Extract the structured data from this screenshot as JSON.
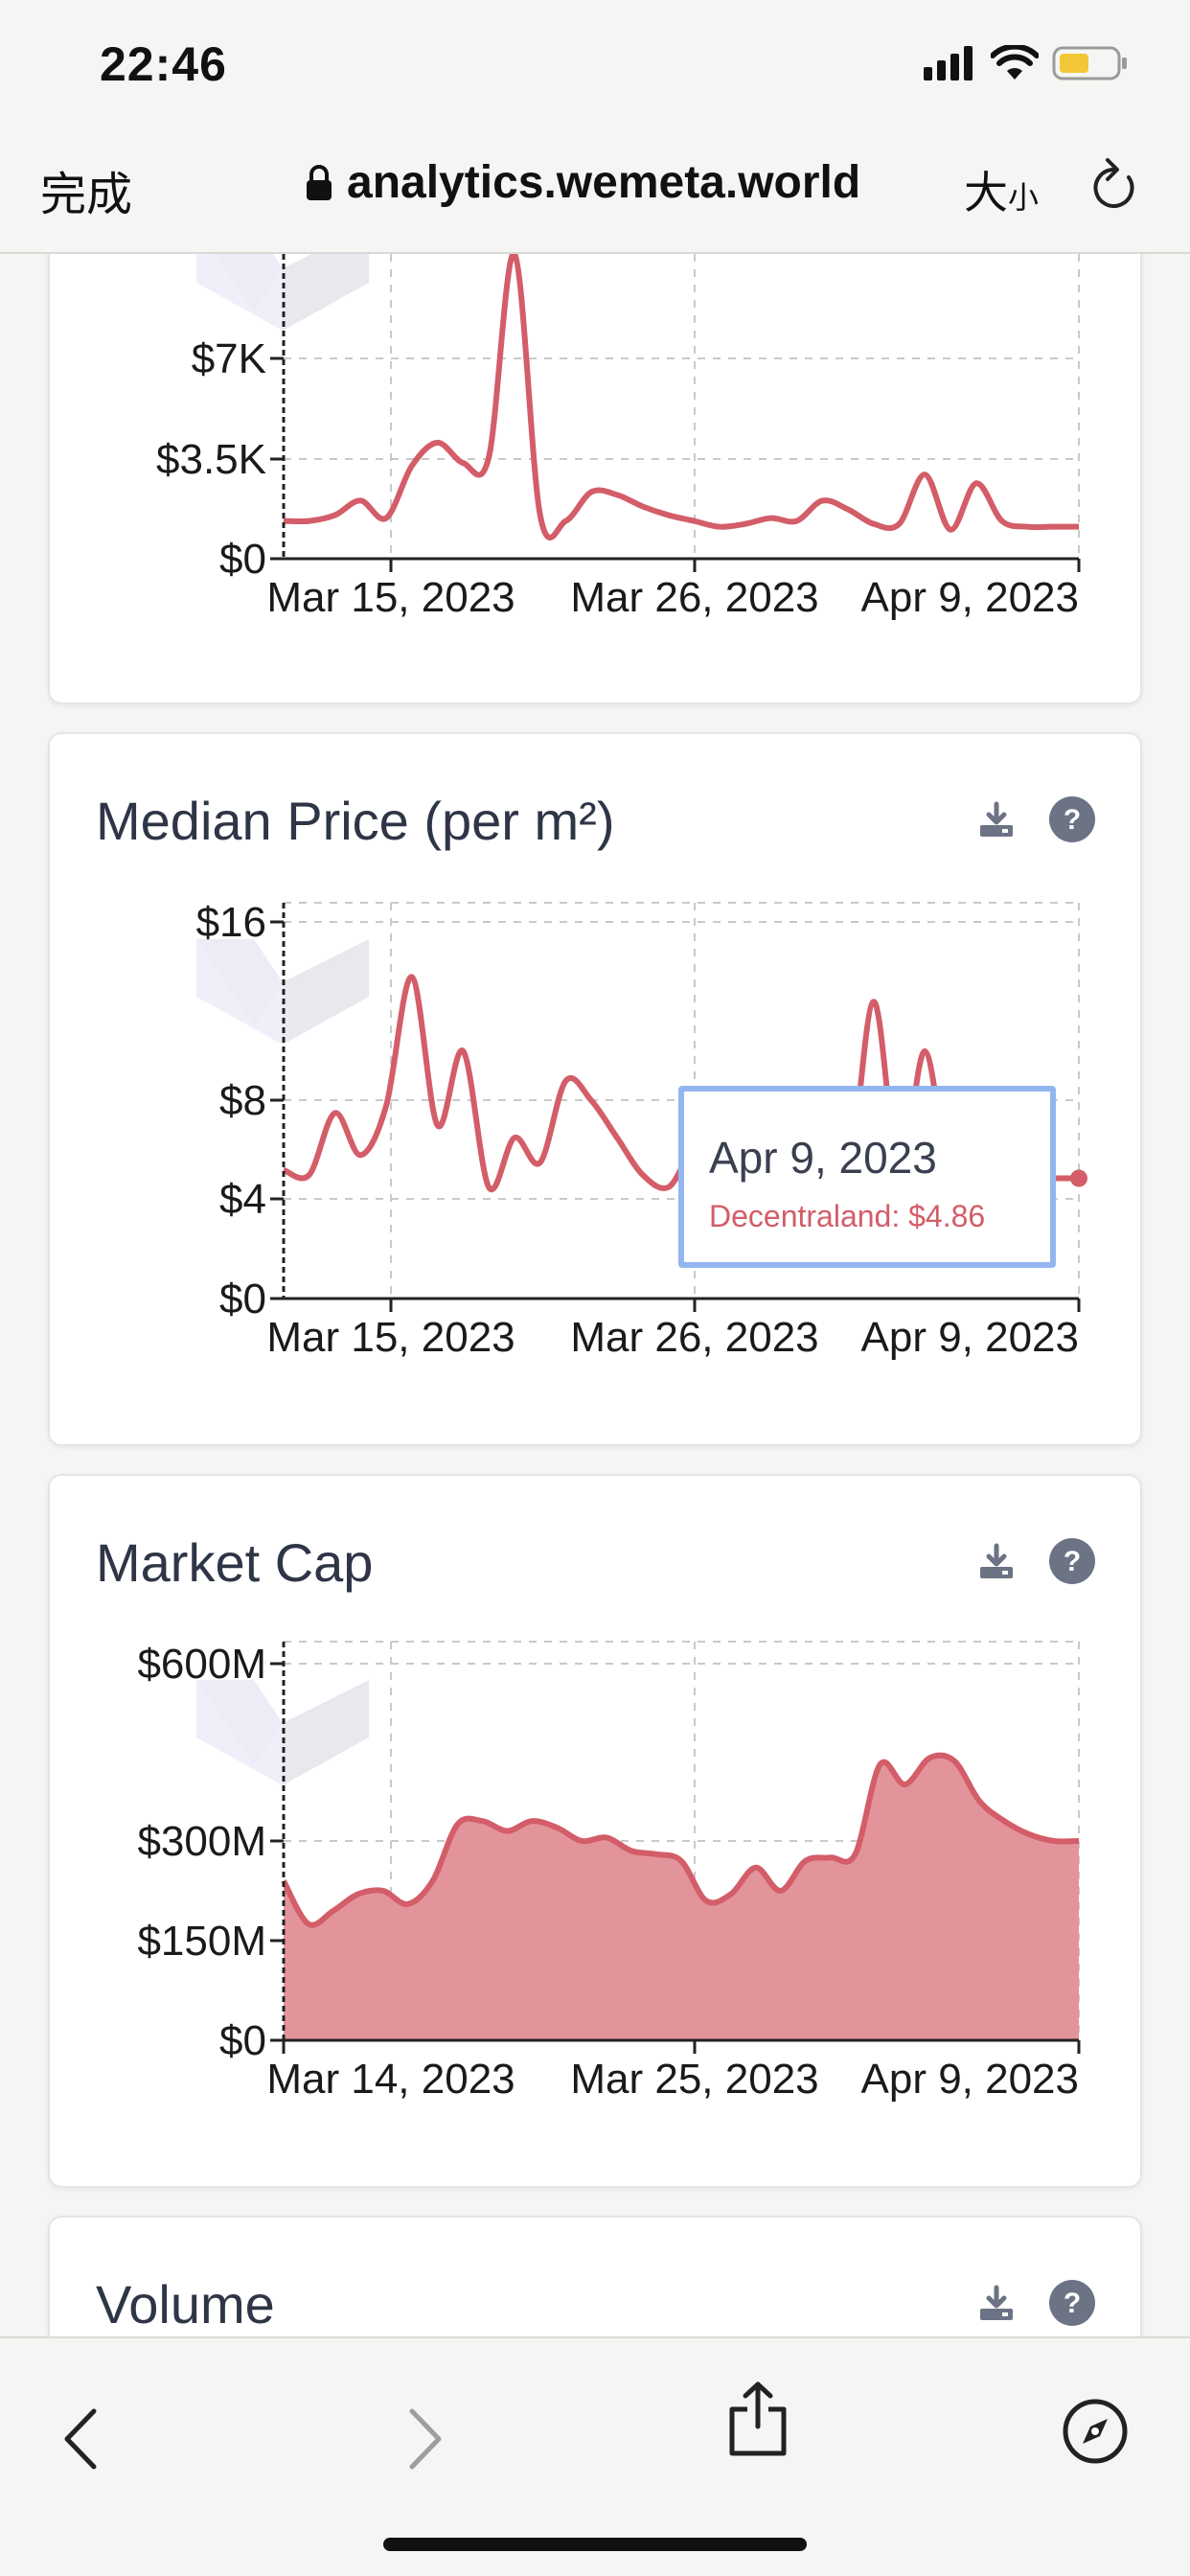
{
  "status_bar": {
    "time": "22:46"
  },
  "browser": {
    "done_label": "完成",
    "url": "analytics.wemeta.world",
    "text_size_big": "大",
    "text_size_small": "小"
  },
  "cards": {
    "top": {
      "y_ticks": [
        "$7K",
        "$3.5K",
        "$0"
      ],
      "x_ticks": [
        "Mar 15, 2023",
        "Mar 26, 2023",
        "Apr 9, 2023"
      ]
    },
    "median": {
      "title": "Median Price (per m²)",
      "y_ticks": [
        "$16",
        "$8",
        "$4",
        "$0"
      ],
      "x_ticks": [
        "Mar 15, 2023",
        "Mar 26, 2023",
        "Apr 9, 2023"
      ],
      "tooltip": {
        "date": "Apr 9, 2023",
        "value": "Decentraland: $4.86"
      }
    },
    "market_cap": {
      "title": "Market Cap",
      "y_ticks": [
        "$600M",
        "$300M",
        "$150M",
        "$0"
      ],
      "x_ticks": [
        "Mar 14, 2023",
        "Mar 25, 2023",
        "Apr 9, 2023"
      ]
    },
    "volume": {
      "title": "Volume"
    }
  },
  "colors": {
    "series": "#d35d68",
    "area_fill": "#e3949a",
    "tooltip_border": "#93b6f0",
    "icon_gray": "#6c7385"
  },
  "chart_data": [
    {
      "type": "line",
      "title": "",
      "x": [
        "Mar 9, 2023",
        "Mar 10, 2023",
        "Mar 11, 2023",
        "Mar 12, 2023",
        "Mar 13, 2023",
        "Mar 14, 2023",
        "Mar 15, 2023",
        "Mar 16, 2023",
        "Mar 17, 2023",
        "Mar 18, 2023",
        "Mar 19, 2023",
        "Mar 20, 2023",
        "Mar 21, 2023",
        "Mar 22, 2023",
        "Mar 23, 2023",
        "Mar 24, 2023",
        "Mar 25, 2023",
        "Mar 26, 2023",
        "Mar 27, 2023",
        "Mar 28, 2023",
        "Mar 29, 2023",
        "Mar 30, 2023",
        "Mar 31, 2023",
        "Apr 1, 2023",
        "Apr 2, 2023",
        "Apr 3, 2023",
        "Apr 4, 2023",
        "Apr 5, 2023",
        "Apr 6, 2023",
        "Apr 7, 2023",
        "Apr 8, 2023",
        "Apr 9, 2023"
      ],
      "series": [
        {
          "values": [
            1300,
            1300,
            1500,
            2000,
            1400,
            3200,
            4000,
            3300,
            3500,
            13000,
            1500,
            1300,
            2300,
            2200,
            1800,
            1500,
            1300,
            1100,
            1200,
            1400,
            1300,
            2000,
            1700,
            1200,
            1200,
            2900,
            1000,
            2600,
            1300,
            1100,
            1100,
            1100
          ]
        }
      ],
      "x_ticks": [
        "Mar 15, 2023",
        "Mar 26, 2023",
        "Apr 9, 2023"
      ],
      "y_ticks": [
        "$7K",
        "$3.5K",
        "$0"
      ],
      "ylim": [
        0,
        10500
      ]
    },
    {
      "type": "line",
      "title": "Median Price (per m²)",
      "x": [
        "Mar 9, 2023",
        "Mar 10, 2023",
        "Mar 11, 2023",
        "Mar 12, 2023",
        "Mar 13, 2023",
        "Mar 14, 2023",
        "Mar 15, 2023",
        "Mar 16, 2023",
        "Mar 17, 2023",
        "Mar 18, 2023",
        "Mar 19, 2023",
        "Mar 20, 2023",
        "Mar 21, 2023",
        "Mar 22, 2023",
        "Mar 23, 2023",
        "Mar 24, 2023",
        "Mar 25, 2023",
        "Mar 26, 2023",
        "Mar 27, 2023",
        "Mar 28, 2023",
        "Mar 29, 2023",
        "Mar 30, 2023",
        "Mar 31, 2023",
        "Apr 1, 2023",
        "Apr 2, 2023",
        "Apr 3, 2023",
        "Apr 4, 2023",
        "Apr 5, 2023",
        "Apr 6, 2023",
        "Apr 7, 2023",
        "Apr 8, 2023",
        "Apr 9, 2023"
      ],
      "series": [
        {
          "name": "Decentraland",
          "values": [
            5.2,
            5.0,
            7.5,
            5.8,
            7.8,
            13.0,
            7.0,
            10.0,
            4.5,
            6.5,
            5.5,
            8.8,
            8.0,
            6.5,
            5.0,
            4.5,
            6.0,
            5.5,
            5.0,
            6.0,
            4.8,
            5.5,
            4.6,
            12.0,
            5.0,
            10.0,
            4.5,
            4.6,
            4.7,
            4.8,
            4.86,
            4.86
          ]
        }
      ],
      "x_ticks": [
        "Mar 15, 2023",
        "Mar 26, 2023",
        "Apr 9, 2023"
      ],
      "y_ticks": [
        "$16",
        "$8",
        "$4",
        "$0"
      ],
      "ylim": [
        0,
        16
      ],
      "tooltip": {
        "date": "Apr 9, 2023",
        "series": "Decentraland",
        "value": 4.86
      }
    },
    {
      "type": "area",
      "title": "Market Cap",
      "x": [
        "Mar 8, 2023",
        "Mar 9, 2023",
        "Mar 10, 2023",
        "Mar 11, 2023",
        "Mar 12, 2023",
        "Mar 13, 2023",
        "Mar 14, 2023",
        "Mar 15, 2023",
        "Mar 16, 2023",
        "Mar 17, 2023",
        "Mar 18, 2023",
        "Mar 19, 2023",
        "Mar 20, 2023",
        "Mar 21, 2023",
        "Mar 22, 2023",
        "Mar 23, 2023",
        "Mar 24, 2023",
        "Mar 25, 2023",
        "Mar 26, 2023",
        "Mar 27, 2023",
        "Mar 28, 2023",
        "Mar 29, 2023",
        "Mar 30, 2023",
        "Mar 31, 2023",
        "Apr 1, 2023",
        "Apr 2, 2023",
        "Apr 3, 2023",
        "Apr 4, 2023",
        "Apr 5, 2023",
        "Apr 6, 2023",
        "Apr 7, 2023",
        "Apr 8, 2023",
        "Apr 9, 2023"
      ],
      "series": [
        {
          "values": [
            240,
            175,
            195,
            220,
            225,
            205,
            240,
            325,
            330,
            315,
            330,
            320,
            300,
            305,
            285,
            280,
            270,
            210,
            220,
            260,
            225,
            270,
            275,
            280,
            415,
            385,
            425,
            420,
            360,
            330,
            310,
            300,
            300
          ]
        }
      ],
      "x_ticks": [
        "Mar 14, 2023",
        "Mar 25, 2023",
        "Apr 9, 2023"
      ],
      "y_ticks": [
        "$600M",
        "$300M",
        "$150M",
        "$0"
      ],
      "ylim": [
        0,
        600
      ]
    }
  ]
}
